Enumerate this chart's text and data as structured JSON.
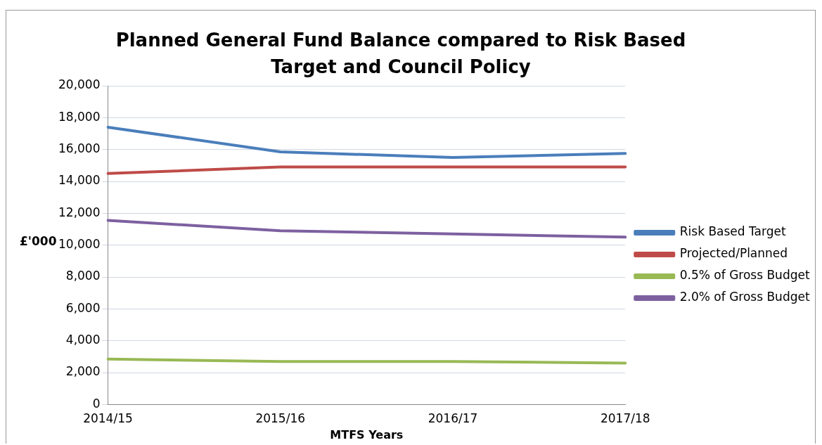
{
  "chart_data": {
    "type": "line",
    "title": "Planned General Fund Balance compared to Risk Based Target and Council Policy",
    "xlabel": "MTFS Years",
    "ylabel": "£'000",
    "categories": [
      "2014/15",
      "2015/16",
      "2016/17",
      "2017/18"
    ],
    "series": [
      {
        "name": "Risk Based Target",
        "color": "#4a7ebb",
        "values": [
          17400,
          15850,
          15500,
          15750
        ]
      },
      {
        "name": "Projected/Planned",
        "color": "#be4b48",
        "values": [
          14500,
          14900,
          14900,
          14900
        ]
      },
      {
        "name": "0.5% of Gross Budget",
        "color": "#98b954",
        "values": [
          2850,
          2700,
          2700,
          2600
        ]
      },
      {
        "name": "2.0% of Gross Budget",
        "color": "#7d60a0",
        "values": [
          11550,
          10900,
          10700,
          10500
        ]
      }
    ],
    "ylim": [
      0,
      20000
    ],
    "yticks": [
      0,
      {
        "value": 2000,
        "label": "2,000"
      },
      {
        "value": 4000,
        "label": "4,000"
      },
      {
        "value": 6000,
        "label": "6,000"
      },
      {
        "value": 8000,
        "label": "8,000"
      },
      {
        "value": 10000,
        "label": "10,000"
      },
      {
        "value": 12000,
        "label": "12,000"
      },
      {
        "value": 14000,
        "label": "14,000"
      },
      {
        "value": 16000,
        "label": "16,000"
      },
      {
        "value": 18000,
        "label": "18,000"
      },
      {
        "value": 20000,
        "label": "20,000"
      }
    ],
    "grid": "y",
    "legend": "right",
    "marker": "none",
    "line_style": "solid"
  }
}
